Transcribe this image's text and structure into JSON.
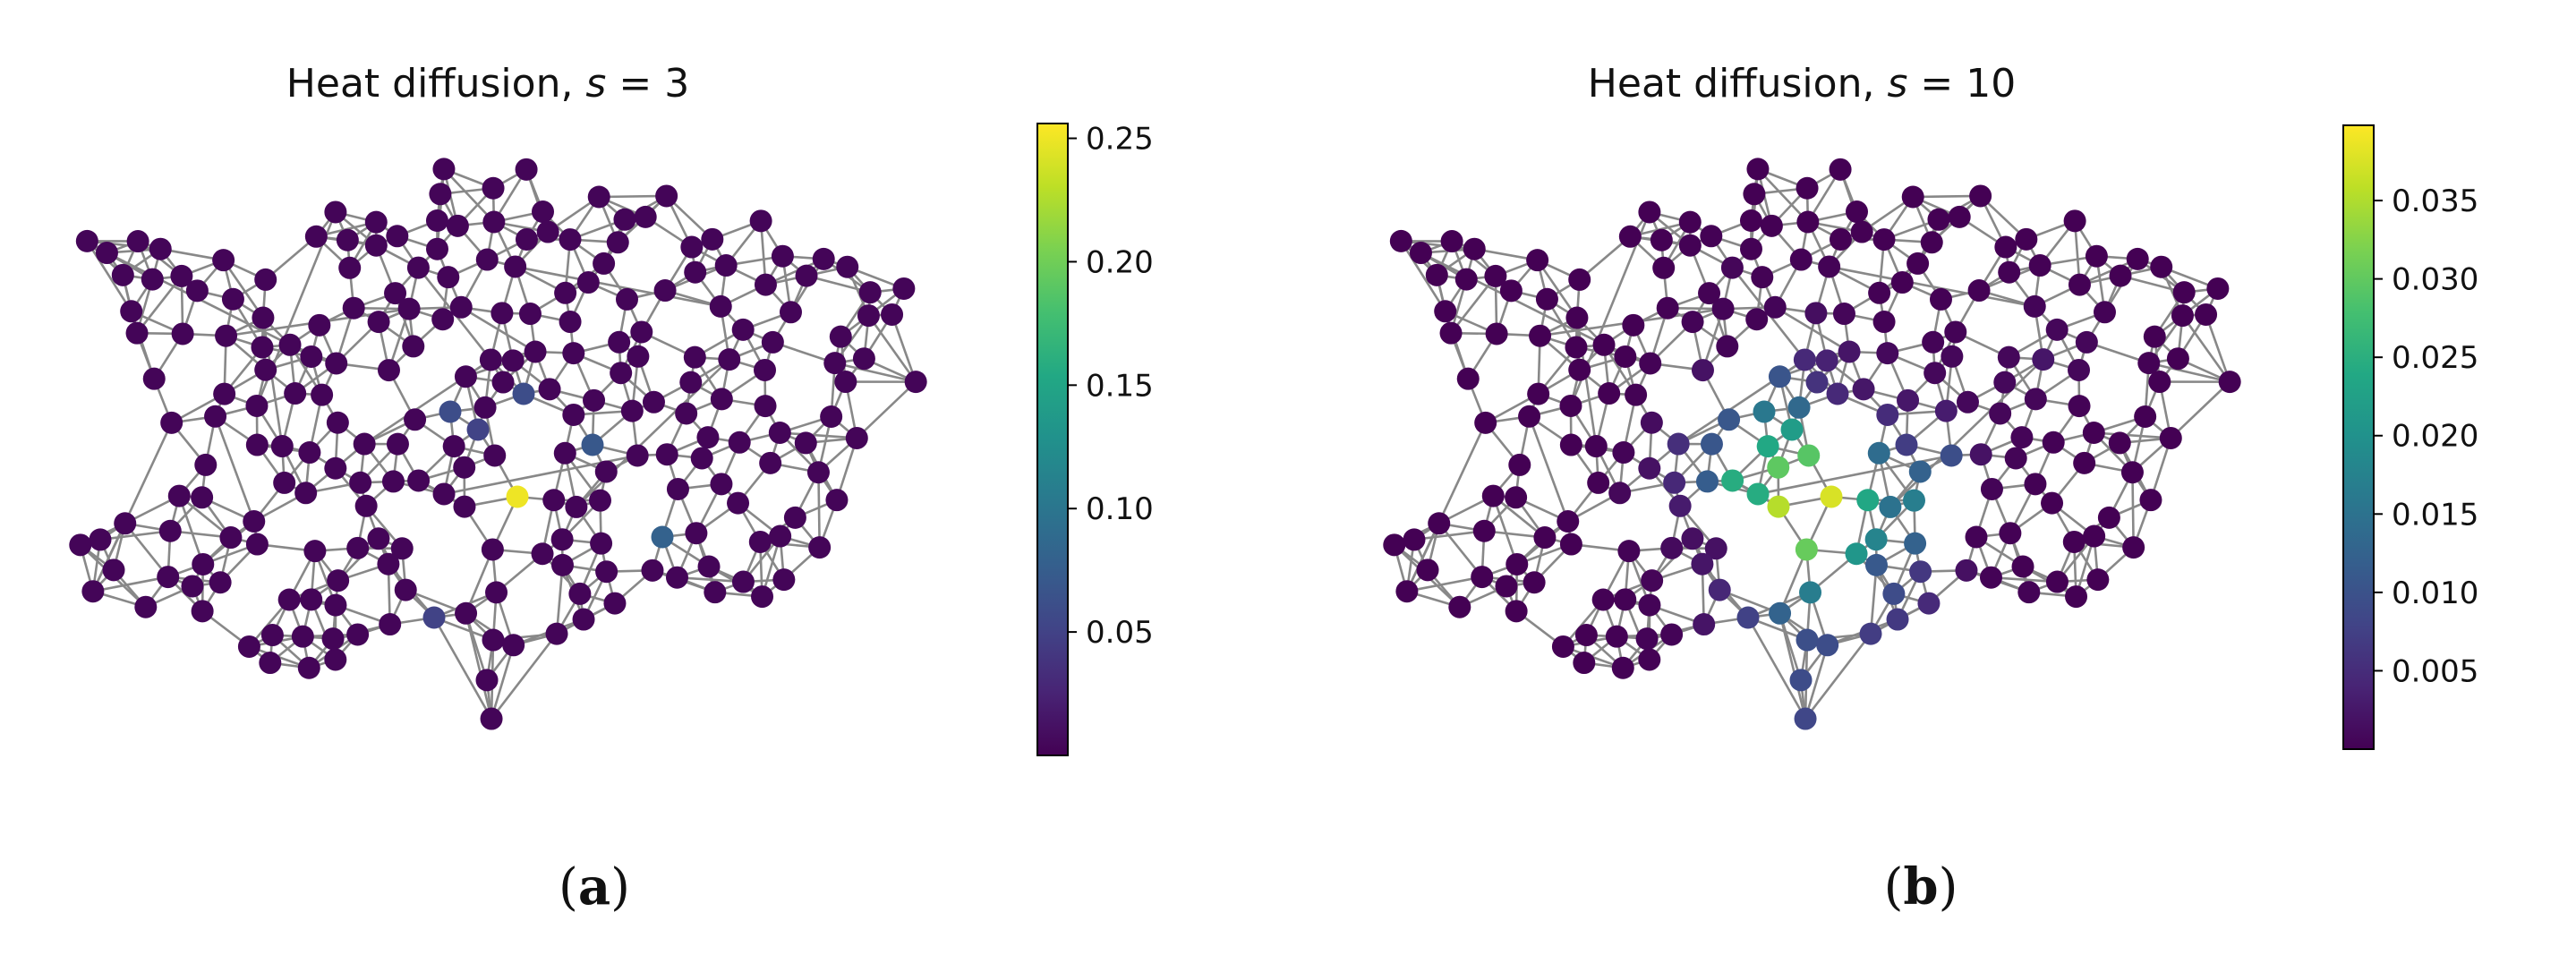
{
  "panels": [
    {
      "title_prefix": "Heat diffusion, ",
      "title_var": "s",
      "title_eq": " = 3",
      "caption_open": "(",
      "caption_letter": "a",
      "caption_close": ")",
      "colorbar_ticks": [
        "0.25",
        "0.20",
        "0.15",
        "0.10",
        "0.05"
      ],
      "colorbar_tick_values": [
        0.25,
        0.2,
        0.15,
        0.1,
        0.05
      ],
      "colorbar_range": [
        0.0,
        0.256
      ],
      "hot_nodes": [
        {
          "node": "n-heat-peak",
          "value": 0.25
        },
        {
          "node": "n-c",
          "value": 0.08
        },
        {
          "node": "n-d",
          "value": 0.06
        },
        {
          "node": "n-e",
          "value": 0.06
        },
        {
          "node": "n-f",
          "value": 0.07
        },
        {
          "node": "n-g",
          "value": 0.05
        },
        {
          "node": "n-h",
          "value": 0.05
        }
      ]
    },
    {
      "title_prefix": "Heat diffusion, ",
      "title_var": "s",
      "title_eq": " = 10",
      "caption_open": "(",
      "caption_letter": "b",
      "caption_close": ")",
      "colorbar_ticks": [
        "0.035",
        "0.030",
        "0.025",
        "0.020",
        "0.015",
        "0.010",
        "0.005"
      ],
      "colorbar_tick_values": [
        0.035,
        0.03,
        0.025,
        0.02,
        0.015,
        0.01,
        0.005
      ],
      "colorbar_range": [
        0.0,
        0.0398
      ],
      "hot_nodes": []
    }
  ],
  "colormap": "viridis",
  "colors": {
    "edge": "#888888",
    "node_low": "#440154",
    "node_high": "#fde725"
  }
}
